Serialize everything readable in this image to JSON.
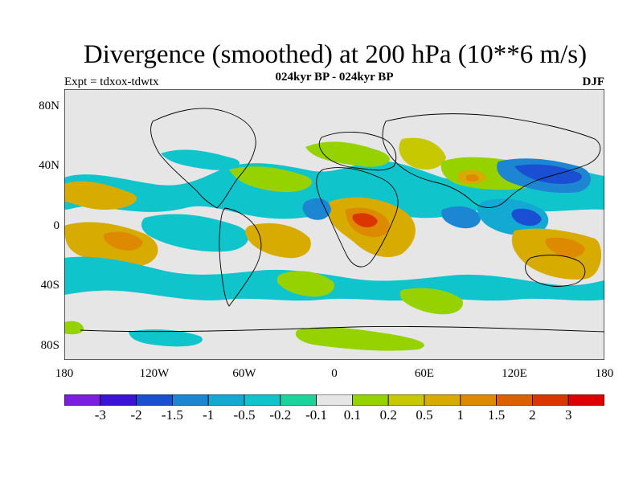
{
  "title": "Divergence (smoothed) at 200 hPa (10**6 m/s)",
  "subtitle": "024kyr BP - 024kyr BP",
  "experiment": "Expt = tdxox-tdwtx",
  "season": "DJF",
  "lat_labels": [
    "80N",
    "40N",
    "0",
    "40S",
    "80S"
  ],
  "lon_labels": [
    "180",
    "120W",
    "60W",
    "0",
    "60E",
    "120E",
    "180"
  ],
  "colorbar": {
    "colors": [
      "#7a1fe0",
      "#3a13d6",
      "#1a4fd4",
      "#1c86d2",
      "#14a9d3",
      "#10c4cc",
      "#1ad49c",
      "#e6e6e6",
      "#96d200",
      "#c8c800",
      "#d7ab00",
      "#de8a00",
      "#dc6000",
      "#dc3600",
      "#dc0000"
    ],
    "labels": [
      "-3",
      "-2",
      "-1.5",
      "-1",
      "-0.5",
      "-0.2",
      "-0.1",
      "0.1",
      "0.2",
      "0.5",
      "1",
      "1.5",
      "2",
      "3"
    ]
  }
}
